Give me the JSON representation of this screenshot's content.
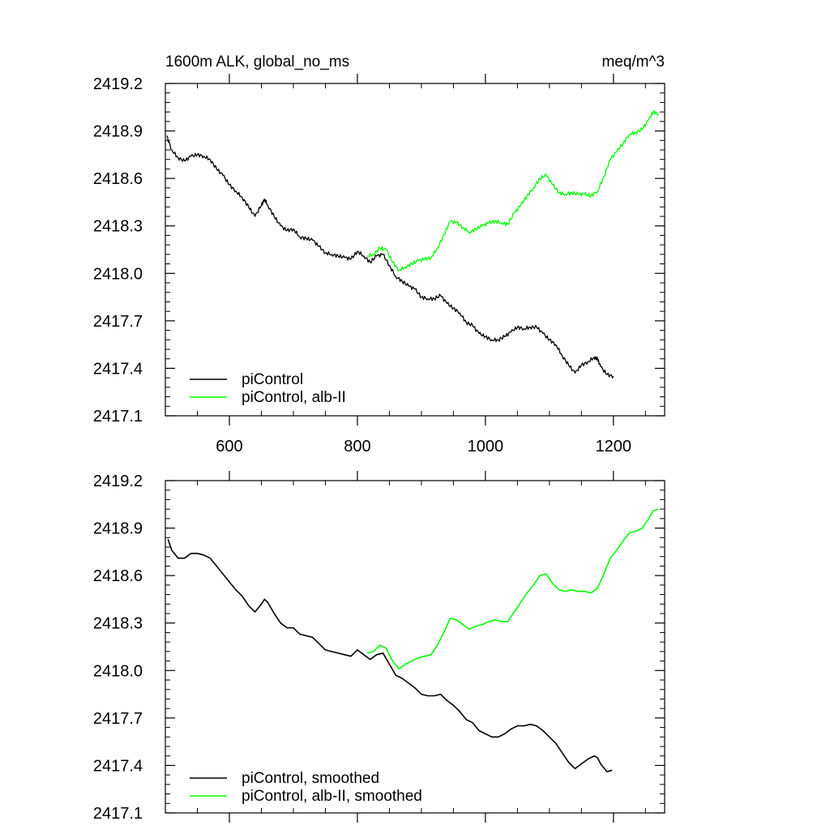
{
  "chart_data": [
    {
      "type": "line",
      "title": "1600m ALK, global_no_ms",
      "units": "meq/m^3",
      "xlim": [
        500,
        1280
      ],
      "ylim": [
        2417.1,
        2419.2
      ],
      "x_ticks": [
        600,
        800,
        1000,
        1200
      ],
      "x_tick_labels": [
        "600",
        "800",
        "1000",
        "1200"
      ],
      "y_ticks": [
        2417.1,
        2417.4,
        2417.7,
        2418.0,
        2418.3,
        2418.6,
        2418.9,
        2419.2
      ],
      "y_tick_labels": [
        "2417.1",
        "2417.4",
        "2417.7",
        "2418.0",
        "2418.3",
        "2418.6",
        "2418.9",
        "2419.2"
      ],
      "legend": {
        "position": "bottom-left"
      },
      "grid": false,
      "series": [
        {
          "name": "piControl",
          "color": "#000000",
          "points": [
            [
              502,
              2418.87
            ],
            [
              510,
              2418.78
            ],
            [
              520,
              2418.73
            ],
            [
              530,
              2418.71
            ],
            [
              540,
              2418.74
            ],
            [
              550,
              2418.75
            ],
            [
              560,
              2418.74
            ],
            [
              570,
              2418.72
            ],
            [
              580,
              2418.66
            ],
            [
              590,
              2418.62
            ],
            [
              600,
              2418.56
            ],
            [
              610,
              2418.52
            ],
            [
              620,
              2418.48
            ],
            [
              630,
              2418.42
            ],
            [
              640,
              2418.36
            ],
            [
              650,
              2418.43
            ],
            [
              655,
              2418.47
            ],
            [
              660,
              2418.43
            ],
            [
              670,
              2418.36
            ],
            [
              680,
              2418.3
            ],
            [
              690,
              2418.27
            ],
            [
              700,
              2418.28
            ],
            [
              710,
              2418.23
            ],
            [
              720,
              2418.22
            ],
            [
              730,
              2418.21
            ],
            [
              740,
              2418.17
            ],
            [
              750,
              2418.13
            ],
            [
              760,
              2418.12
            ],
            [
              770,
              2418.11
            ],
            [
              780,
              2418.1
            ],
            [
              790,
              2418.09
            ],
            [
              800,
              2418.14
            ],
            [
              810,
              2418.11
            ],
            [
              820,
              2418.07
            ],
            [
              830,
              2418.11
            ],
            [
              840,
              2418.12
            ],
            [
              850,
              2418.05
            ],
            [
              860,
              2417.98
            ],
            [
              870,
              2417.95
            ],
            [
              880,
              2417.92
            ],
            [
              890,
              2417.9
            ],
            [
              900,
              2417.85
            ],
            [
              910,
              2417.84
            ],
            [
              920,
              2417.84
            ],
            [
              930,
              2417.86
            ],
            [
              940,
              2417.81
            ],
            [
              950,
              2417.78
            ],
            [
              960,
              2417.75
            ],
            [
              970,
              2417.69
            ],
            [
              980,
              2417.67
            ],
            [
              990,
              2417.62
            ],
            [
              1000,
              2417.6
            ],
            [
              1010,
              2417.58
            ],
            [
              1020,
              2417.58
            ],
            [
              1030,
              2417.6
            ],
            [
              1040,
              2417.63
            ],
            [
              1050,
              2417.66
            ],
            [
              1060,
              2417.65
            ],
            [
              1070,
              2417.66
            ],
            [
              1080,
              2417.66
            ],
            [
              1090,
              2417.62
            ],
            [
              1100,
              2417.58
            ],
            [
              1110,
              2417.55
            ],
            [
              1120,
              2417.48
            ],
            [
              1130,
              2417.42
            ],
            [
              1140,
              2417.37
            ],
            [
              1150,
              2417.42
            ],
            [
              1160,
              2417.44
            ],
            [
              1170,
              2417.47
            ],
            [
              1175,
              2417.46
            ],
            [
              1180,
              2417.41
            ],
            [
              1190,
              2417.36
            ],
            [
              1200,
              2417.35
            ]
          ]
        },
        {
          "name": "piControl, alb-II",
          "color": "#00ff00",
          "points": [
            [
              815,
              2418.11
            ],
            [
              825,
              2418.12
            ],
            [
              835,
              2418.16
            ],
            [
              845,
              2418.15
            ],
            [
              855,
              2418.07
            ],
            [
              865,
              2418.02
            ],
            [
              875,
              2418.04
            ],
            [
              885,
              2418.06
            ],
            [
              895,
              2418.08
            ],
            [
              905,
              2418.09
            ],
            [
              915,
              2418.1
            ],
            [
              925,
              2418.16
            ],
            [
              935,
              2418.24
            ],
            [
              945,
              2418.33
            ],
            [
              955,
              2418.32
            ],
            [
              965,
              2418.29
            ],
            [
              975,
              2418.26
            ],
            [
              985,
              2418.28
            ],
            [
              995,
              2418.3
            ],
            [
              1005,
              2418.32
            ],
            [
              1015,
              2418.33
            ],
            [
              1025,
              2418.32
            ],
            [
              1035,
              2418.31
            ],
            [
              1045,
              2418.38
            ],
            [
              1055,
              2418.43
            ],
            [
              1065,
              2418.49
            ],
            [
              1075,
              2418.54
            ],
            [
              1085,
              2418.6
            ],
            [
              1095,
              2418.62
            ],
            [
              1105,
              2418.56
            ],
            [
              1115,
              2418.51
            ],
            [
              1125,
              2418.5
            ],
            [
              1135,
              2418.51
            ],
            [
              1145,
              2418.5
            ],
            [
              1155,
              2418.5
            ],
            [
              1165,
              2418.49
            ],
            [
              1175,
              2418.52
            ],
            [
              1185,
              2418.61
            ],
            [
              1195,
              2418.72
            ],
            [
              1205,
              2418.77
            ],
            [
              1215,
              2418.82
            ],
            [
              1225,
              2418.88
            ],
            [
              1235,
              2418.89
            ],
            [
              1245,
              2418.91
            ],
            [
              1255,
              2418.97
            ],
            [
              1262,
              2419.02
            ],
            [
              1270,
              2419.01
            ]
          ]
        }
      ]
    },
    {
      "type": "line",
      "xlim": [
        500,
        1280
      ],
      "ylim": [
        2417.1,
        2419.2
      ],
      "x_ticks": [
        600,
        800,
        1000,
        1200
      ],
      "y_ticks": [
        2417.1,
        2417.4,
        2417.7,
        2418.0,
        2418.3,
        2418.6,
        2418.9,
        2419.2
      ],
      "y_tick_labels": [
        "2417.1",
        "2417.4",
        "2417.7",
        "2418.0",
        "2418.3",
        "2418.6",
        "2418.9",
        "2419.2"
      ],
      "legend": {
        "position": "bottom-left"
      },
      "grid": false,
      "series": [
        {
          "name": "piControl, smoothed",
          "color": "#000000",
          "points": [
            [
              504,
              2418.83
            ],
            [
              510,
              2418.76
            ],
            [
              520,
              2418.71
            ],
            [
              530,
              2418.71
            ],
            [
              540,
              2418.74
            ],
            [
              550,
              2418.74
            ],
            [
              560,
              2418.73
            ],
            [
              570,
              2418.71
            ],
            [
              580,
              2418.66
            ],
            [
              590,
              2418.61
            ],
            [
              600,
              2418.56
            ],
            [
              610,
              2418.51
            ],
            [
              620,
              2418.47
            ],
            [
              630,
              2418.41
            ],
            [
              640,
              2418.37
            ],
            [
              650,
              2418.42
            ],
            [
              655,
              2418.45
            ],
            [
              660,
              2418.43
            ],
            [
              670,
              2418.36
            ],
            [
              680,
              2418.3
            ],
            [
              690,
              2418.27
            ],
            [
              700,
              2418.27
            ],
            [
              710,
              2418.23
            ],
            [
              720,
              2418.22
            ],
            [
              730,
              2418.21
            ],
            [
              740,
              2418.17
            ],
            [
              750,
              2418.13
            ],
            [
              760,
              2418.12
            ],
            [
              770,
              2418.11
            ],
            [
              780,
              2418.1
            ],
            [
              790,
              2418.09
            ],
            [
              800,
              2418.13
            ],
            [
              810,
              2418.1
            ],
            [
              820,
              2418.07
            ],
            [
              830,
              2418.1
            ],
            [
              840,
              2418.11
            ],
            [
              850,
              2418.04
            ],
            [
              860,
              2417.97
            ],
            [
              870,
              2417.95
            ],
            [
              880,
              2417.92
            ],
            [
              890,
              2417.89
            ],
            [
              900,
              2417.85
            ],
            [
              910,
              2417.84
            ],
            [
              920,
              2417.84
            ],
            [
              930,
              2417.85
            ],
            [
              940,
              2417.81
            ],
            [
              950,
              2417.78
            ],
            [
              960,
              2417.74
            ],
            [
              970,
              2417.69
            ],
            [
              980,
              2417.67
            ],
            [
              990,
              2417.62
            ],
            [
              1000,
              2417.6
            ],
            [
              1010,
              2417.58
            ],
            [
              1020,
              2417.58
            ],
            [
              1030,
              2417.6
            ],
            [
              1040,
              2417.63
            ],
            [
              1050,
              2417.65
            ],
            [
              1060,
              2417.65
            ],
            [
              1070,
              2417.66
            ],
            [
              1080,
              2417.65
            ],
            [
              1090,
              2417.62
            ],
            [
              1100,
              2417.58
            ],
            [
              1110,
              2417.54
            ],
            [
              1120,
              2417.48
            ],
            [
              1130,
              2417.42
            ],
            [
              1140,
              2417.38
            ],
            [
              1150,
              2417.41
            ],
            [
              1160,
              2417.44
            ],
            [
              1170,
              2417.46
            ],
            [
              1175,
              2417.45
            ],
            [
              1180,
              2417.41
            ],
            [
              1190,
              2417.36
            ],
            [
              1198,
              2417.37
            ]
          ]
        },
        {
          "name": "piControl, alb-II, smoothed",
          "color": "#00ff00",
          "points": [
            [
              815,
              2418.11
            ],
            [
              825,
              2418.12
            ],
            [
              835,
              2418.16
            ],
            [
              845,
              2418.14
            ],
            [
              855,
              2418.06
            ],
            [
              865,
              2418.01
            ],
            [
              875,
              2418.04
            ],
            [
              885,
              2418.06
            ],
            [
              895,
              2418.08
            ],
            [
              905,
              2418.09
            ],
            [
              915,
              2418.1
            ],
            [
              925,
              2418.16
            ],
            [
              935,
              2418.24
            ],
            [
              945,
              2418.33
            ],
            [
              955,
              2418.32
            ],
            [
              965,
              2418.29
            ],
            [
              975,
              2418.26
            ],
            [
              985,
              2418.28
            ],
            [
              995,
              2418.29
            ],
            [
              1005,
              2418.31
            ],
            [
              1015,
              2418.32
            ],
            [
              1025,
              2418.31
            ],
            [
              1035,
              2418.31
            ],
            [
              1045,
              2418.37
            ],
            [
              1055,
              2418.43
            ],
            [
              1065,
              2418.49
            ],
            [
              1075,
              2418.54
            ],
            [
              1085,
              2418.6
            ],
            [
              1095,
              2418.61
            ],
            [
              1105,
              2418.55
            ],
            [
              1115,
              2418.51
            ],
            [
              1125,
              2418.5
            ],
            [
              1135,
              2418.51
            ],
            [
              1145,
              2418.5
            ],
            [
              1155,
              2418.5
            ],
            [
              1165,
              2418.49
            ],
            [
              1175,
              2418.52
            ],
            [
              1185,
              2418.61
            ],
            [
              1195,
              2418.71
            ],
            [
              1205,
              2418.76
            ],
            [
              1215,
              2418.82
            ],
            [
              1225,
              2418.87
            ],
            [
              1235,
              2418.88
            ],
            [
              1245,
              2418.9
            ],
            [
              1255,
              2418.96
            ],
            [
              1262,
              2419.01
            ],
            [
              1270,
              2419.02
            ]
          ]
        }
      ]
    }
  ]
}
